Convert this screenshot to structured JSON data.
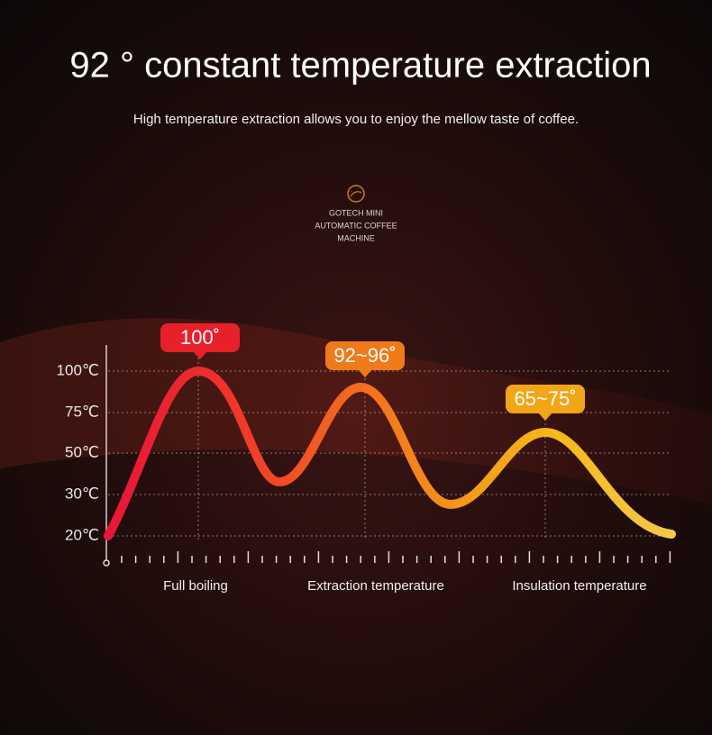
{
  "header": {
    "title": "92 ° constant temperature extraction",
    "subtitle": "High temperature extraction allows you to enjoy the mellow taste of coffee."
  },
  "logo": {
    "lines": [
      "GOTECH MINI",
      "AUTOMATIC COFFEE",
      "MACHINE"
    ]
  },
  "chart": {
    "y_labels": [
      "100℃",
      "75℃",
      "50℃",
      "30℃",
      "20℃"
    ],
    "callouts": [
      "100˚",
      "92~96˚",
      "65~75˚"
    ],
    "x_labels": [
      "Full boiling",
      "Extraction temperature",
      "Insulation temperature"
    ]
  }
}
